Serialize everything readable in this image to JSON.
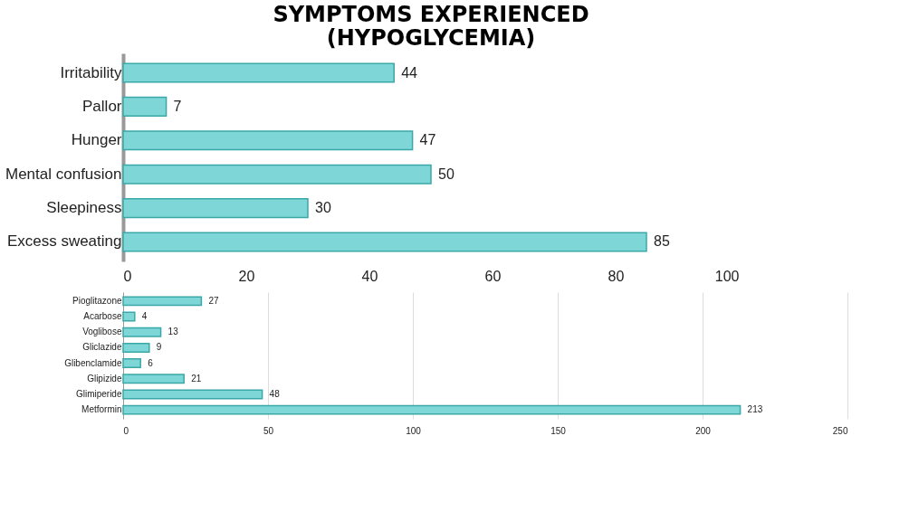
{
  "chart_data": [
    {
      "type": "bar",
      "orientation": "horizontal",
      "title": "SYMPTOMS EXPERIENCED (HYPOGLYCEMIA)",
      "categories": [
        "Irritability",
        "Pallor",
        "Hunger",
        "Mental confusion",
        "Sleepiness",
        "Excess sweating"
      ],
      "values": [
        44,
        7,
        47,
        50,
        30,
        85
      ],
      "color": "#7fd6d6",
      "xlim": [
        0,
        100
      ],
      "xticks": [
        0,
        20,
        40,
        60,
        80,
        100
      ],
      "grid": false,
      "data_labels": true
    },
    {
      "type": "bar",
      "orientation": "horizontal",
      "categories": [
        "Pioglitazone",
        "Acarbose",
        "Voglibose",
        "Gliclazide",
        "Glibenclamide",
        "Glipizide",
        "Glimiperide",
        "Metformin"
      ],
      "values": [
        27,
        4,
        13,
        9,
        6,
        21,
        48,
        213
      ],
      "color": "#7fd6d6",
      "xlim": [
        0,
        250
      ],
      "xticks": [
        0,
        50,
        100,
        150,
        200,
        250
      ],
      "grid": "x",
      "data_labels": true
    }
  ]
}
